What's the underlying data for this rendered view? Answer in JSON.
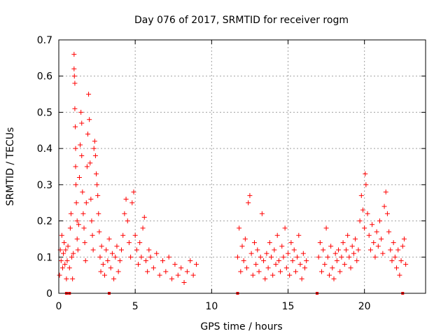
{
  "chart_data": {
    "type": "scatter",
    "title": "Day 076 of 2017, SRMTID for receiver rogm",
    "xlabel": "GPS time / hours",
    "ylabel": "SRMTID / TECUs",
    "xlim": [
      0,
      24
    ],
    "ylim": [
      0,
      0.7
    ],
    "xticks": [
      0,
      5,
      10,
      15,
      20
    ],
    "xtick_labels": [
      "0",
      "5",
      "10",
      "15",
      "20"
    ],
    "yticks": [
      0,
      0.1,
      0.2,
      0.3,
      0.4,
      0.5,
      0.6,
      0.7
    ],
    "ytick_labels": [
      "0",
      "0.1",
      "0.2",
      "0.3",
      "0.4",
      "0.5",
      "0.6",
      "0.7"
    ],
    "grid": true,
    "marker": "+",
    "color": "#ff0000",
    "series": [
      {
        "name": "SRMTID",
        "points": [
          [
            0.05,
            0.05
          ],
          [
            0.1,
            0.12
          ],
          [
            0.15,
            0.09
          ],
          [
            0.2,
            0.16
          ],
          [
            0.25,
            0.07
          ],
          [
            0.3,
            0.11
          ],
          [
            0.35,
            0.14
          ],
          [
            0.4,
            0.08
          ],
          [
            0.45,
            0.12
          ],
          [
            0.5,
            0.04
          ],
          [
            0.55,
            0.09
          ],
          [
            0.6,
            0.13
          ],
          [
            0.7,
            0.07
          ],
          [
            0.75,
            0.18
          ],
          [
            0.8,
            0.22
          ],
          [
            0.85,
            0.1
          ],
          [
            0.9,
            0.04
          ],
          [
            0.95,
            0.11
          ],
          [
            1.0,
            0.62
          ],
          [
            1.0,
            0.66
          ],
          [
            1.02,
            0.6
          ],
          [
            1.05,
            0.58
          ],
          [
            1.05,
            0.51
          ],
          [
            1.08,
            0.46
          ],
          [
            1.1,
            0.4
          ],
          [
            1.1,
            0.35
          ],
          [
            1.12,
            0.3
          ],
          [
            1.15,
            0.25
          ],
          [
            1.2,
            0.2
          ],
          [
            1.2,
            0.15
          ],
          [
            1.25,
            0.12
          ],
          [
            1.3,
            0.19
          ],
          [
            1.35,
            0.32
          ],
          [
            1.4,
            0.41
          ],
          [
            1.45,
            0.5
          ],
          [
            1.5,
            0.47
          ],
          [
            1.5,
            0.38
          ],
          [
            1.55,
            0.28
          ],
          [
            1.6,
            0.22
          ],
          [
            1.65,
            0.18
          ],
          [
            1.7,
            0.14
          ],
          [
            1.75,
            0.09
          ],
          [
            1.8,
            0.25
          ],
          [
            1.85,
            0.35
          ],
          [
            1.9,
            0.44
          ],
          [
            1.95,
            0.55
          ],
          [
            2.0,
            0.48
          ],
          [
            2.05,
            0.36
          ],
          [
            2.1,
            0.26
          ],
          [
            2.15,
            0.2
          ],
          [
            2.2,
            0.16
          ],
          [
            2.25,
            0.12
          ],
          [
            2.3,
            0.4
          ],
          [
            2.35,
            0.42
          ],
          [
            2.4,
            0.38
          ],
          [
            2.45,
            0.33
          ],
          [
            2.5,
            0.3
          ],
          [
            2.55,
            0.27
          ],
          [
            2.6,
            0.22
          ],
          [
            2.65,
            0.17
          ],
          [
            2.7,
            0.1
          ],
          [
            2.75,
            0.06
          ],
          [
            2.8,
            0.13
          ],
          [
            2.9,
            0.08
          ],
          [
            3.0,
            0.05
          ],
          [
            3.1,
            0.12
          ],
          [
            3.2,
            0.09
          ],
          [
            3.3,
            0.15
          ],
          [
            3.4,
            0.07
          ],
          [
            3.5,
            0.11
          ],
          [
            3.6,
            0.04
          ],
          [
            3.7,
            0.1
          ],
          [
            3.8,
            0.13
          ],
          [
            3.9,
            0.06
          ],
          [
            4.0,
            0.09
          ],
          [
            4.1,
            0.12
          ],
          [
            4.2,
            0.16
          ],
          [
            4.3,
            0.22
          ],
          [
            4.4,
            0.26
          ],
          [
            4.5,
            0.2
          ],
          [
            4.6,
            0.14
          ],
          [
            4.7,
            0.1
          ],
          [
            4.8,
            0.25
          ],
          [
            4.9,
            0.28
          ],
          [
            5.0,
            0.16
          ],
          [
            5.1,
            0.12
          ],
          [
            5.2,
            0.08
          ],
          [
            5.3,
            0.14
          ],
          [
            5.4,
            0.1
          ],
          [
            5.5,
            0.18
          ],
          [
            5.6,
            0.21
          ],
          [
            5.7,
            0.09
          ],
          [
            5.8,
            0.06
          ],
          [
            5.9,
            0.12
          ],
          [
            6.0,
            0.1
          ],
          [
            6.2,
            0.07
          ],
          [
            6.4,
            0.11
          ],
          [
            6.6,
            0.05
          ],
          [
            6.8,
            0.09
          ],
          [
            7.0,
            0.06
          ],
          [
            7.2,
            0.1
          ],
          [
            7.4,
            0.04
          ],
          [
            7.6,
            0.08
          ],
          [
            7.8,
            0.05
          ],
          [
            8.0,
            0.07
          ],
          [
            8.2,
            0.03
          ],
          [
            8.4,
            0.06
          ],
          [
            8.6,
            0.09
          ],
          [
            8.8,
            0.05
          ],
          [
            9.0,
            0.08
          ],
          [
            11.7,
            0.1
          ],
          [
            11.8,
            0.18
          ],
          [
            11.9,
            0.06
          ],
          [
            12.0,
            0.13
          ],
          [
            12.1,
            0.09
          ],
          [
            12.2,
            0.15
          ],
          [
            12.3,
            0.07
          ],
          [
            12.4,
            0.25
          ],
          [
            12.5,
            0.27
          ],
          [
            12.6,
            0.11
          ],
          [
            12.7,
            0.05
          ],
          [
            12.8,
            0.14
          ],
          [
            12.9,
            0.08
          ],
          [
            13.0,
            0.12
          ],
          [
            13.1,
            0.06
          ],
          [
            13.2,
            0.1
          ],
          [
            13.3,
            0.22
          ],
          [
            13.4,
            0.09
          ],
          [
            13.5,
            0.04
          ],
          [
            13.6,
            0.11
          ],
          [
            13.7,
            0.07
          ],
          [
            13.8,
            0.14
          ],
          [
            13.9,
            0.1
          ],
          [
            14.0,
            0.05
          ],
          [
            14.1,
            0.12
          ],
          [
            14.2,
            0.08
          ],
          [
            14.3,
            0.16
          ],
          [
            14.4,
            0.09
          ],
          [
            14.5,
            0.06
          ],
          [
            14.6,
            0.13
          ],
          [
            14.7,
            0.1
          ],
          [
            14.8,
            0.18
          ],
          [
            14.9,
            0.07
          ],
          [
            15.0,
            0.11
          ],
          [
            15.1,
            0.05
          ],
          [
            15.2,
            0.14
          ],
          [
            15.3,
            0.09
          ],
          [
            15.4,
            0.12
          ],
          [
            15.5,
            0.06
          ],
          [
            15.6,
            0.1
          ],
          [
            15.7,
            0.16
          ],
          [
            15.8,
            0.08
          ],
          [
            15.9,
            0.04
          ],
          [
            16.0,
            0.11
          ],
          [
            16.1,
            0.07
          ],
          [
            16.2,
            0.09
          ],
          [
            17.0,
            0.1
          ],
          [
            17.1,
            0.14
          ],
          [
            17.2,
            0.06
          ],
          [
            17.3,
            0.12
          ],
          [
            17.4,
            0.08
          ],
          [
            17.5,
            0.18
          ],
          [
            17.6,
            0.1
          ],
          [
            17.7,
            0.05
          ],
          [
            17.8,
            0.13
          ],
          [
            17.9,
            0.07
          ],
          [
            18.0,
            0.04
          ],
          [
            18.1,
            0.11
          ],
          [
            18.2,
            0.09
          ],
          [
            18.3,
            0.12
          ],
          [
            18.4,
            0.06
          ],
          [
            18.5,
            0.1
          ],
          [
            18.6,
            0.14
          ],
          [
            18.7,
            0.08
          ],
          [
            18.8,
            0.12
          ],
          [
            18.9,
            0.16
          ],
          [
            19.0,
            0.1
          ],
          [
            19.1,
            0.07
          ],
          [
            19.2,
            0.13
          ],
          [
            19.3,
            0.11
          ],
          [
            19.4,
            0.15
          ],
          [
            19.5,
            0.09
          ],
          [
            19.6,
            0.12
          ],
          [
            19.7,
            0.2
          ],
          [
            19.8,
            0.27
          ],
          [
            19.9,
            0.23
          ],
          [
            20.0,
            0.18
          ],
          [
            20.05,
            0.33
          ],
          [
            20.1,
            0.3
          ],
          [
            20.2,
            0.22
          ],
          [
            20.3,
            0.16
          ],
          [
            20.4,
            0.12
          ],
          [
            20.5,
            0.19
          ],
          [
            20.6,
            0.14
          ],
          [
            20.7,
            0.1
          ],
          [
            20.8,
            0.17
          ],
          [
            20.9,
            0.13
          ],
          [
            21.0,
            0.2
          ],
          [
            21.1,
            0.15
          ],
          [
            21.2,
            0.11
          ],
          [
            21.3,
            0.24
          ],
          [
            21.4,
            0.28
          ],
          [
            21.5,
            0.22
          ],
          [
            21.6,
            0.17
          ],
          [
            21.7,
            0.12
          ],
          [
            21.8,
            0.09
          ],
          [
            21.9,
            0.14
          ],
          [
            22.0,
            0.1
          ],
          [
            22.1,
            0.07
          ],
          [
            22.2,
            0.12
          ],
          [
            22.3,
            0.05
          ],
          [
            22.4,
            0.09
          ],
          [
            22.5,
            0.13
          ],
          [
            22.6,
            0.15
          ],
          [
            22.7,
            0.08
          ]
        ]
      }
    ],
    "axis_markers": [
      0.5,
      0.7,
      3.3,
      11.7,
      16.9,
      22.5
    ]
  }
}
